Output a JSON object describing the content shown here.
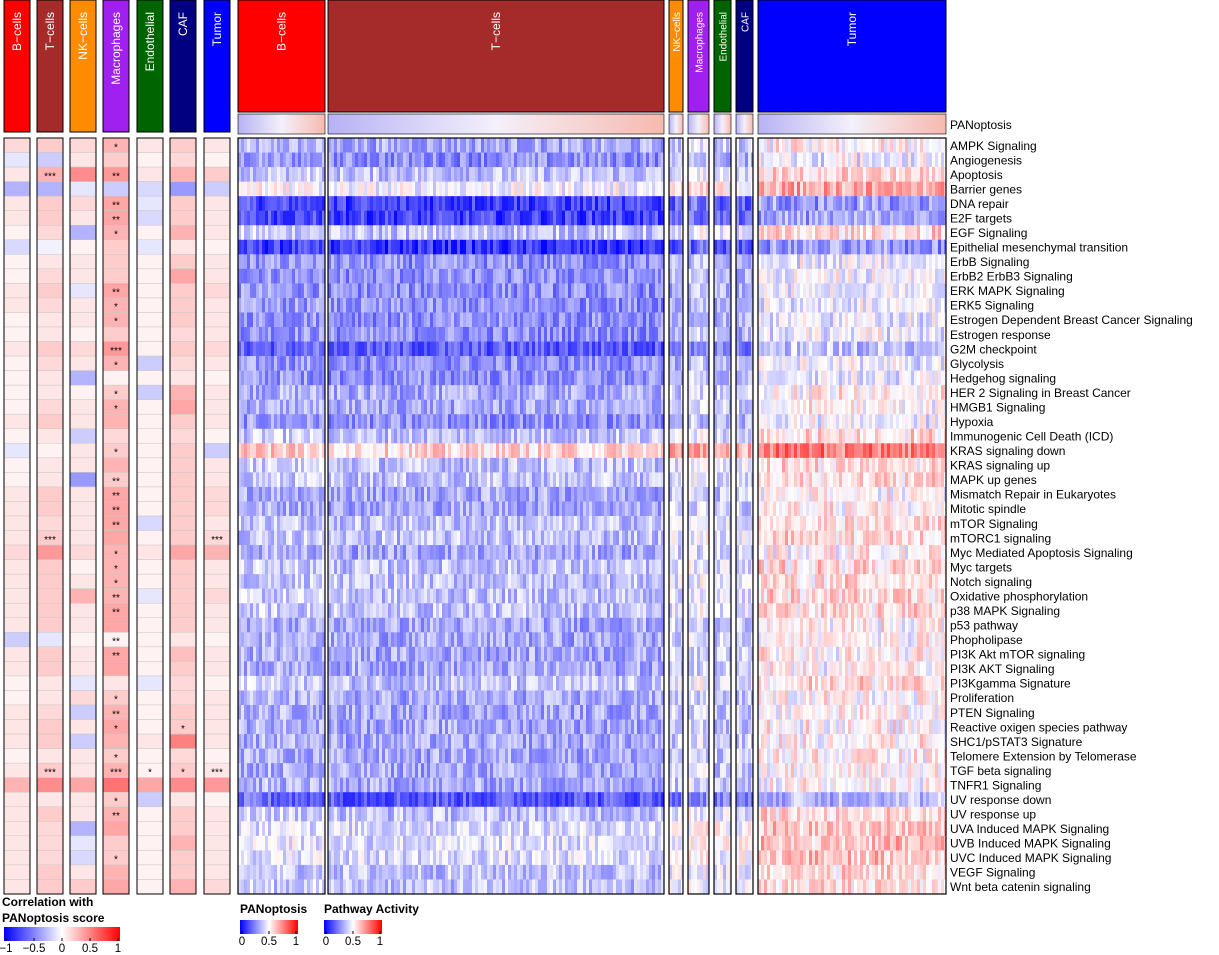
{
  "chart_data": {
    "type": "heatmap",
    "cell_types": [
      "B-cells",
      "T-cells",
      "NK-cells",
      "Macrophages",
      "Endothelial",
      "CAF",
      "Tumor"
    ],
    "cell_type_colors": [
      "#ff0000",
      "#a52a2a",
      "#ff8c00",
      "#a020f0",
      "#006400",
      "#000080",
      "#0000ff"
    ],
    "pathways": [
      "AMPK Signaling",
      "Angiogenesis",
      "Apoptosis",
      "Barrier genes",
      "DNA repair",
      "E2F targets",
      "EGF Signaling",
      "Epithelial mesenchymal transition",
      "ErbB Signaling",
      "ErbB2 ErbB3 Signaling",
      "ERK MAPK Signaling",
      "ERK5 Signaling",
      "Estrogen Dependent Breast Cancer Signaling",
      "Estrogen response",
      "G2M checkpoint",
      "Glycolysis",
      "Hedgehog signaling",
      "HER 2 Signaling in Breast Cancer",
      "HMGB1 Signaling",
      "Hypoxia",
      "Immunogenic Cell Death (ICD)",
      "KRAS signaling down",
      "KRAS signaling up",
      "MAPK up genes",
      "Mismatch Repair in Eukaryotes",
      "Mitotic spindle",
      "mTOR Signaling",
      "mTORC1 signaling",
      "Myc Mediated Apoptosis Signaling",
      "Myc targets",
      "Notch signaling",
      "Oxidative phosphorylation",
      "p38 MAPK Signaling",
      "p53 pathway",
      "Phopholipase",
      "PI3K Akt mTOR signaling",
      "PI3K AKT Signaling",
      "PI3Kgamma Signature",
      "Proliferation",
      "PTEN Signaling",
      "Reactive oxigen species pathway",
      "SHC1/pSTAT3 Signature",
      "Telomere Extension by Telomerase",
      "TGF beta signaling",
      "TNFR1 Signaling",
      "UV response down",
      "UV response up",
      "UVA Induced MAPK Signaling",
      "UVB Induced MAPK Signaling",
      "UVC Induced MAPK Signaling",
      "VEGF Signaling",
      "Wnt beta catenin signaling"
    ],
    "correlation_panel": {
      "columns": [
        "B-cells",
        "T-cells",
        "NK-cells",
        "Macrophages",
        "Endothelial",
        "CAF",
        "Tumor"
      ],
      "values": [
        [
          0.15,
          0.2,
          0.15,
          0.3,
          0.1,
          0.2,
          0.1
        ],
        [
          -0.1,
          -0.2,
          0.1,
          0.2,
          0.05,
          0.15,
          0.05
        ],
        [
          0.1,
          0.3,
          0.45,
          0.4,
          0.1,
          0.3,
          0.2
        ],
        [
          -0.3,
          -0.3,
          -0.1,
          -0.2,
          -0.15,
          -0.4,
          -0.2
        ],
        [
          0.1,
          0.2,
          0.15,
          0.35,
          -0.1,
          0.2,
          0.1
        ],
        [
          0.1,
          0.2,
          0.1,
          0.35,
          -0.15,
          0.2,
          0.1
        ],
        [
          0.05,
          0.15,
          -0.3,
          0.3,
          0.05,
          0.3,
          0.1
        ],
        [
          -0.15,
          -0.05,
          0.05,
          0.2,
          -0.1,
          0.1,
          0.05
        ],
        [
          0.05,
          0.1,
          0.1,
          0.2,
          0.05,
          0.2,
          0.1
        ],
        [
          0.05,
          0.15,
          0.1,
          0.2,
          0.05,
          0.35,
          0.1
        ],
        [
          0.1,
          0.2,
          -0.1,
          0.35,
          0.05,
          0.2,
          0.15
        ],
        [
          0.1,
          0.15,
          0.1,
          0.3,
          0.05,
          0.2,
          0.1
        ],
        [
          0.05,
          0.1,
          0.1,
          0.3,
          0.05,
          0.2,
          0.1
        ],
        [
          0.05,
          0.1,
          0.05,
          0.2,
          0.05,
          0.15,
          0.1
        ],
        [
          0.1,
          0.2,
          0.15,
          0.4,
          0.05,
          0.2,
          0.15
        ],
        [
          0.05,
          0.15,
          0.1,
          0.3,
          -0.2,
          0.15,
          0.1
        ],
        [
          0.05,
          0.1,
          -0.3,
          0.05,
          0.05,
          0.1,
          0.05
        ],
        [
          0.05,
          0.1,
          0.05,
          0.2,
          -0.2,
          0.3,
          0.1
        ],
        [
          0.05,
          0.15,
          0.1,
          0.3,
          0.05,
          0.35,
          0.1
        ],
        [
          0.1,
          0.2,
          0.1,
          0.3,
          0.05,
          0.2,
          0.1
        ],
        [
          0.05,
          0.1,
          -0.2,
          0.15,
          0.05,
          0.15,
          0.05
        ],
        [
          -0.1,
          0.05,
          0.1,
          0.2,
          0.05,
          0.2,
          -0.2
        ],
        [
          0.05,
          0.1,
          0.1,
          0.3,
          0.05,
          0.2,
          0.1
        ],
        [
          0.05,
          0.1,
          -0.4,
          0.2,
          0.05,
          0.2,
          0.1
        ],
        [
          0.1,
          0.2,
          0.1,
          0.35,
          0.05,
          0.2,
          0.15
        ],
        [
          0.1,
          0.2,
          0.1,
          0.35,
          0.05,
          0.2,
          0.15
        ],
        [
          0.1,
          0.15,
          0.1,
          0.35,
          -0.15,
          0.2,
          0.1
        ],
        [
          0.1,
          0.2,
          0.1,
          0.35,
          0.05,
          0.2,
          0.15
        ],
        [
          0.15,
          0.4,
          0.15,
          0.3,
          0.1,
          0.35,
          0.3
        ],
        [
          0.1,
          0.2,
          0.05,
          0.3,
          0.05,
          0.2,
          0.1
        ],
        [
          0.1,
          0.2,
          0.1,
          0.3,
          0.05,
          0.2,
          0.1
        ],
        [
          0.1,
          0.2,
          0.3,
          0.3,
          -0.1,
          0.2,
          0.15
        ],
        [
          0.1,
          0.2,
          0.1,
          0.35,
          0.05,
          0.2,
          0.1
        ],
        [
          0.1,
          0.2,
          0.1,
          0.35,
          0.05,
          0.2,
          0.1
        ],
        [
          -0.2,
          -0.1,
          0.05,
          0.05,
          0.05,
          0.1,
          0.05
        ],
        [
          0.1,
          0.2,
          0.1,
          0.35,
          0.05,
          0.25,
          0.1
        ],
        [
          0.1,
          0.2,
          0.1,
          0.35,
          0.05,
          0.2,
          0.1
        ],
        [
          0.05,
          0.1,
          -0.1,
          0.1,
          -0.1,
          0.15,
          0.05
        ],
        [
          0.05,
          0.1,
          0.15,
          0.2,
          0.05,
          0.15,
          0.1
        ],
        [
          0.1,
          0.15,
          -0.2,
          0.3,
          0.05,
          0.2,
          0.1
        ],
        [
          0.1,
          0.2,
          0.1,
          0.35,
          0.05,
          0.2,
          0.1
        ],
        [
          0.1,
          0.2,
          -0.2,
          0.3,
          0.1,
          0.5,
          0.1
        ],
        [
          0.05,
          0.1,
          0.1,
          0.2,
          0.05,
          0.15,
          0.05
        ],
        [
          0.1,
          0.2,
          0.1,
          0.3,
          0.05,
          0.2,
          0.1
        ],
        [
          0.3,
          0.45,
          0.35,
          0.55,
          0.35,
          0.45,
          0.4
        ],
        [
          0.1,
          0.1,
          0.1,
          0.2,
          -0.2,
          0.1,
          0.05
        ],
        [
          0.1,
          0.2,
          0.1,
          0.3,
          0.05,
          0.2,
          0.1
        ],
        [
          0.1,
          0.15,
          -0.3,
          0.35,
          0.05,
          0.2,
          0.1
        ],
        [
          0.1,
          0.15,
          -0.1,
          0.2,
          0.05,
          0.3,
          0.1
        ],
        [
          0.1,
          0.15,
          -0.15,
          0.2,
          0.05,
          0.2,
          0.1
        ],
        [
          0.1,
          0.2,
          0.1,
          0.3,
          0.05,
          0.2,
          0.1
        ],
        [
          0.1,
          0.2,
          0.2,
          0.35,
          0.05,
          0.3,
          0.15
        ]
      ],
      "significance": [
        [
          "",
          "",
          "",
          "*",
          "",
          "",
          ""
        ],
        [
          "",
          "",
          "",
          "",
          "",
          "",
          ""
        ],
        [
          "",
          "***",
          "",
          "**",
          "",
          "",
          ""
        ],
        [
          "",
          "",
          "",
          "",
          "",
          "",
          ""
        ],
        [
          "",
          "",
          "",
          "**",
          "",
          "",
          ""
        ],
        [
          "",
          "",
          "",
          "**",
          "",
          "",
          ""
        ],
        [
          "",
          "",
          "",
          "*",
          "",
          "",
          ""
        ],
        [
          "",
          "",
          "",
          "",
          "",
          "",
          ""
        ],
        [
          "",
          "",
          "",
          "",
          "",
          "",
          ""
        ],
        [
          "",
          "",
          "",
          "",
          "",
          "",
          ""
        ],
        [
          "",
          "",
          "",
          "**",
          "",
          "",
          ""
        ],
        [
          "",
          "",
          "",
          "*",
          "",
          "",
          ""
        ],
        [
          "",
          "",
          "",
          "*",
          "",
          "",
          ""
        ],
        [
          "",
          "",
          "",
          "",
          "",
          "",
          ""
        ],
        [
          "",
          "",
          "",
          "***",
          "",
          "",
          ""
        ],
        [
          "",
          "",
          "",
          "*",
          "",
          "",
          ""
        ],
        [
          "",
          "",
          "",
          "",
          "",
          "",
          ""
        ],
        [
          "",
          "",
          "",
          "*",
          "",
          "",
          ""
        ],
        [
          "",
          "",
          "",
          "*",
          "",
          "",
          ""
        ],
        [
          "",
          "",
          "",
          "",
          "",
          "",
          ""
        ],
        [
          "",
          "",
          "",
          "",
          "",
          "",
          ""
        ],
        [
          "",
          "",
          "",
          "*",
          "",
          "",
          ""
        ],
        [
          "",
          "",
          "",
          "",
          "",
          "",
          ""
        ],
        [
          "",
          "",
          "",
          "**",
          "",
          "",
          ""
        ],
        [
          "",
          "",
          "",
          "**",
          "",
          "",
          ""
        ],
        [
          "",
          "",
          "",
          "**",
          "",
          "",
          ""
        ],
        [
          "",
          "",
          "",
          "**",
          "",
          "",
          ""
        ],
        [
          "",
          "***",
          "",
          "",
          "",
          "",
          "***"
        ],
        [
          "",
          "",
          "",
          "*",
          "",
          "",
          ""
        ],
        [
          "",
          "",
          "",
          "*",
          "",
          "",
          ""
        ],
        [
          "",
          "",
          "",
          "*",
          "",
          "",
          ""
        ],
        [
          "",
          "",
          "",
          "**",
          "",
          "",
          ""
        ],
        [
          "",
          "",
          "",
          "**",
          "",
          "",
          ""
        ],
        [
          "",
          "",
          "",
          "",
          "",
          "",
          ""
        ],
        [
          "",
          "",
          "",
          "**",
          "",
          "",
          ""
        ],
        [
          "",
          "",
          "",
          "**",
          "",
          "",
          ""
        ],
        [
          "",
          "",
          "",
          "",
          "",
          "",
          ""
        ],
        [
          "",
          "",
          "",
          "",
          "",
          "",
          ""
        ],
        [
          "",
          "",
          "",
          "*",
          "",
          "",
          ""
        ],
        [
          "",
          "",
          "",
          "**",
          "",
          "",
          ""
        ],
        [
          "",
          "",
          "",
          "*",
          "",
          "*",
          ""
        ],
        [
          "",
          "",
          "",
          "",
          "",
          "",
          ""
        ],
        [
          "",
          "",
          "",
          "*",
          "",
          "",
          ""
        ],
        [
          "",
          "***",
          "",
          "***",
          "*",
          "*",
          "***"
        ],
        [
          "",
          "",
          "",
          "",
          "",
          "",
          ""
        ],
        [
          "",
          "",
          "",
          "*",
          "",
          "",
          ""
        ],
        [
          "",
          "",
          "",
          "**",
          "",
          "",
          ""
        ],
        [
          "",
          "",
          "",
          "",
          "",
          "",
          ""
        ],
        [
          "",
          "",
          "",
          "",
          "",
          "",
          ""
        ],
        [
          "",
          "",
          "",
          "*",
          "",
          "",
          ""
        ],
        [
          "",
          "",
          "",
          "",
          "",
          "",
          ""
        ],
        [
          "",
          "",
          "",
          "",
          "",
          "",
          ""
        ]
      ]
    },
    "activity_panel": {
      "groups": [
        "B-cells",
        "T-cells",
        "NK-cells",
        "Macrophages",
        "Endothelial",
        "CAF",
        "Tumor"
      ],
      "group_colors": [
        "#ff0000",
        "#a52a2a",
        "#ff8c00",
        "#a020f0",
        "#006400",
        "#000080",
        "#0000ff"
      ],
      "row_mean_activity": [
        0.35,
        0.3,
        0.4,
        0.5,
        0.15,
        0.15,
        0.4,
        0.12,
        0.3,
        0.3,
        0.3,
        0.3,
        0.3,
        0.3,
        0.2,
        0.3,
        0.3,
        0.35,
        0.35,
        0.3,
        0.4,
        0.6,
        0.4,
        0.4,
        0.35,
        0.35,
        0.4,
        0.4,
        0.35,
        0.4,
        0.4,
        0.4,
        0.4,
        0.35,
        0.35,
        0.35,
        0.35,
        0.4,
        0.35,
        0.35,
        0.35,
        0.35,
        0.35,
        0.35,
        0.35,
        0.2,
        0.4,
        0.45,
        0.45,
        0.45,
        0.4,
        0.4
      ],
      "panoptosis_annotation": "PANoptosis"
    },
    "legends": {
      "correlation": {
        "title": "Correlation with\nPANoptosis score",
        "ticks": [
          "−1",
          "−0.5",
          "0",
          "0.5",
          "1"
        ],
        "colors": [
          "#0000ff",
          "#ffffff",
          "#ff0000"
        ]
      },
      "panoptosis": {
        "title": "PANoptosis",
        "ticks": [
          "0",
          "0.5",
          "1"
        ],
        "colors": [
          "#0000ff",
          "#ffffff",
          "#ff0000"
        ]
      },
      "activity": {
        "title": "Pathway Activity",
        "ticks": [
          "0",
          "0.5",
          "1"
        ],
        "colors": [
          "#0000ff",
          "#ffffff",
          "#ff0000"
        ]
      }
    }
  }
}
